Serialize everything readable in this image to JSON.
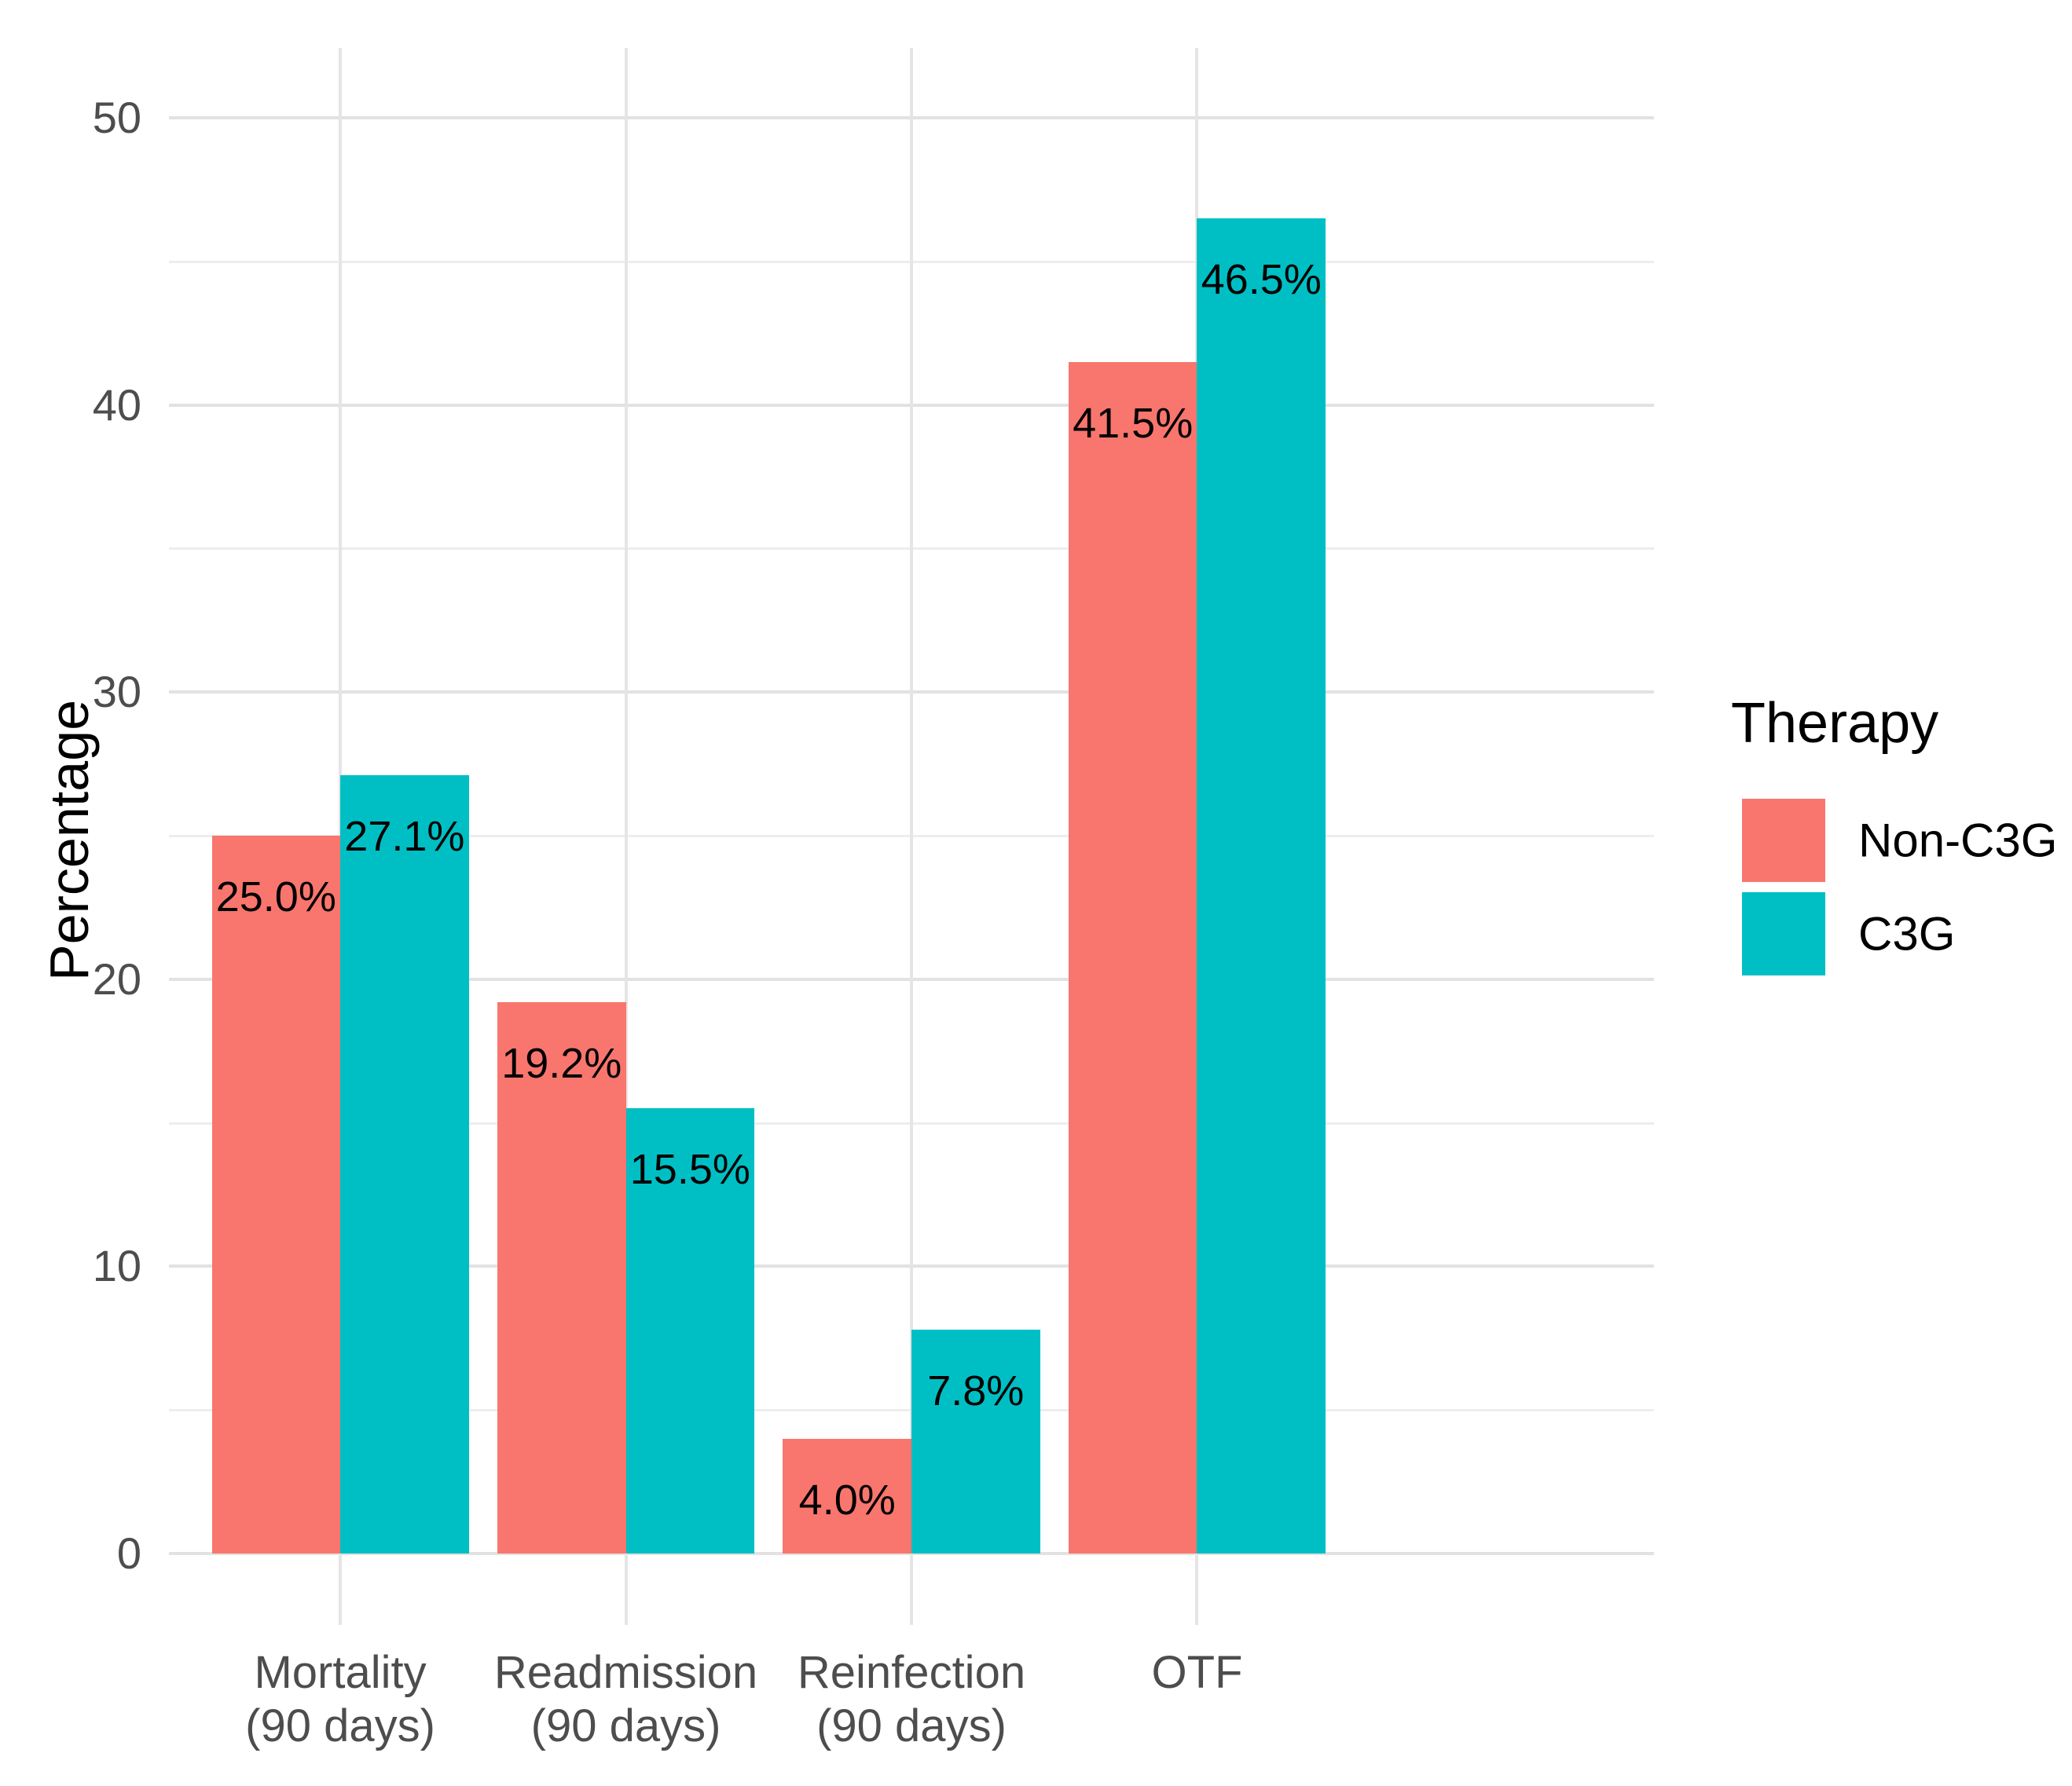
{
  "chart_data": {
    "type": "bar",
    "title": "",
    "categories": [
      "Mortality\n(90 days)",
      "Readmission\n(90 days)",
      "Reinfection\n(90 days)",
      "OTF"
    ],
    "series": [
      {
        "name": "Non-C3G",
        "color": "#F8766D",
        "values": [
          25.0,
          19.2,
          4.0,
          41.5
        ],
        "labels": [
          "25.0%",
          "19.2%",
          "4.0%",
          "41.5%"
        ]
      },
      {
        "name": "C3G",
        "color": "#00BFC4",
        "values": [
          27.1,
          15.5,
          7.8,
          46.5
        ],
        "labels": [
          "27.1%",
          "15.5%",
          "7.8%",
          "46.5%"
        ]
      }
    ],
    "xlabel": "",
    "ylabel": "Percentage",
    "ylim": [
      0,
      50
    ],
    "yticks": [
      0,
      10,
      20,
      30,
      40,
      50
    ],
    "yticks_minor": [
      5,
      15,
      25,
      35,
      45
    ],
    "grid": "on",
    "legend_title": "Therapy",
    "legend_position": "right",
    "value_label_color": "#000000",
    "axis_text_color": "#4d4d4d",
    "background_color": "#ffffff"
  }
}
